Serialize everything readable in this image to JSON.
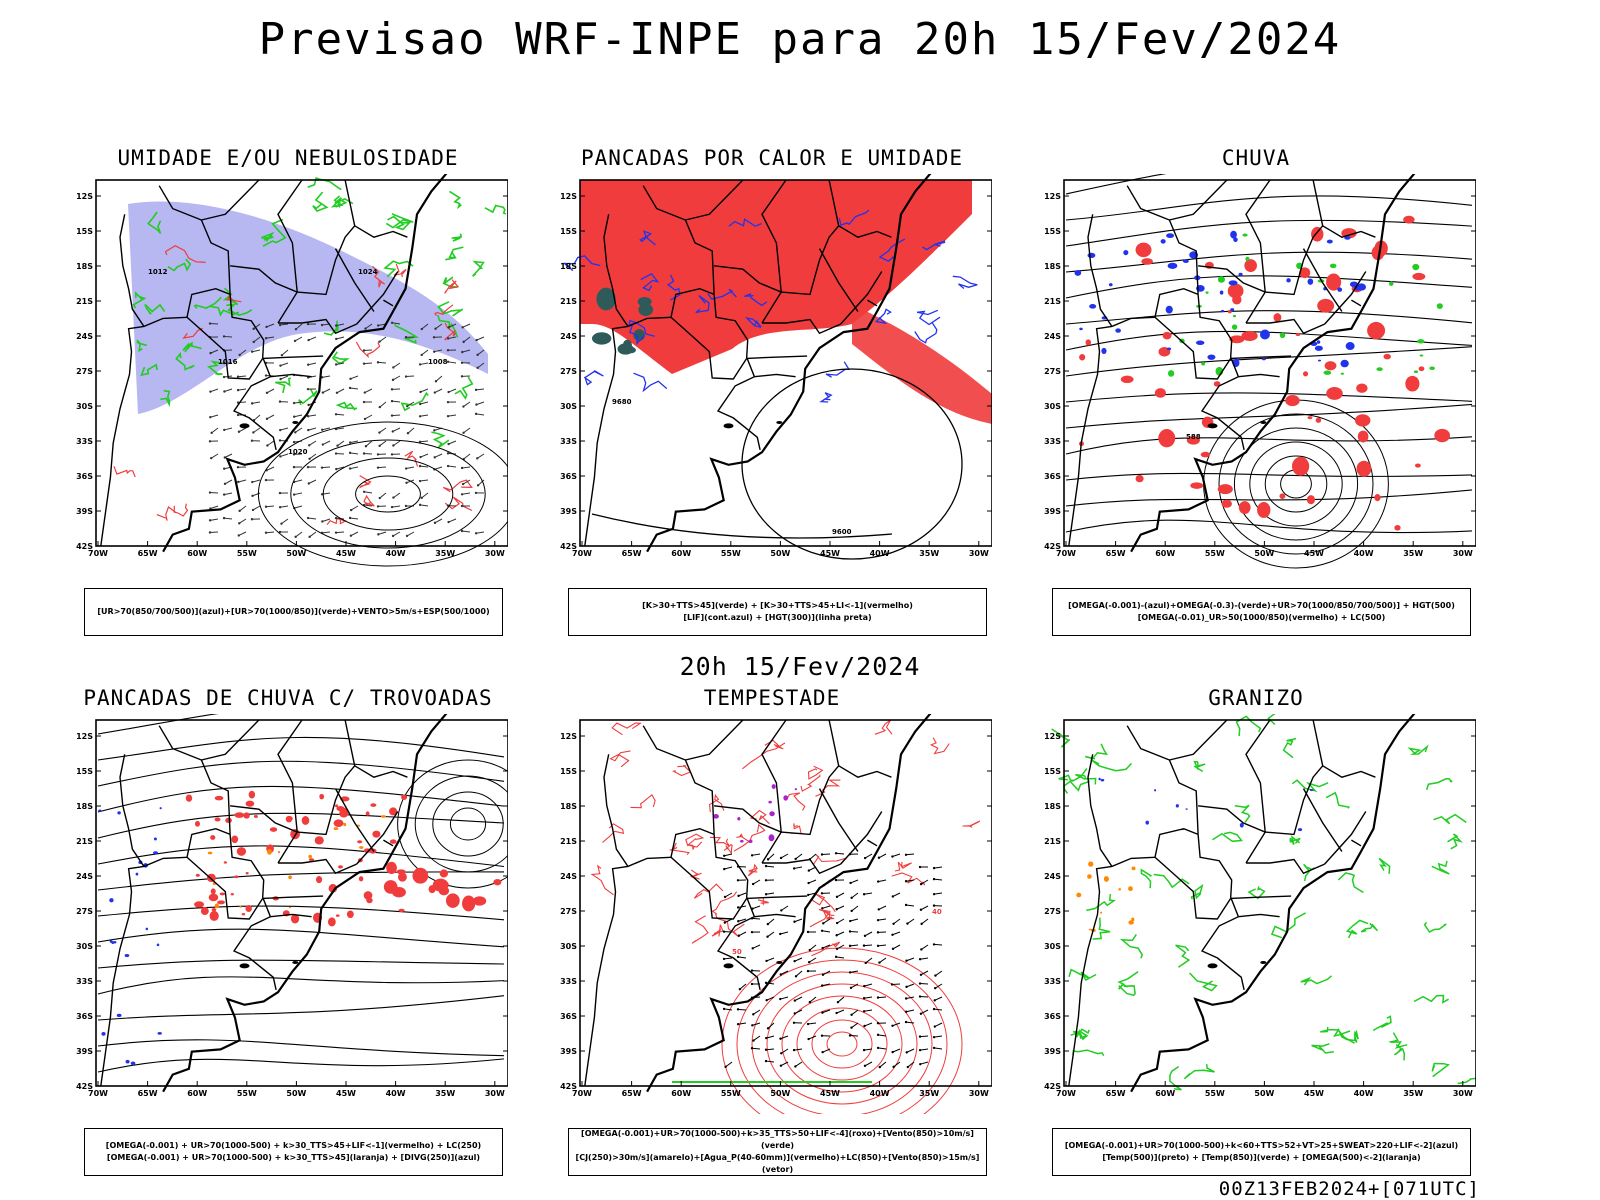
{
  "header": {
    "title": "Previsao WRF-INPE  para 20h 15/Fev/2024"
  },
  "middle": {
    "title": "20h 15/Fev/2024"
  },
  "footer": {
    "run": "00Z13FEB2024+[071UTC]"
  },
  "axes": {
    "lat_labels": [
      "12S",
      "15S",
      "18S",
      "21S",
      "24S",
      "27S",
      "30S",
      "33S",
      "36S",
      "39S",
      "42S"
    ],
    "lon_labels": [
      "70W",
      "65W",
      "60W",
      "55W",
      "50W",
      "45W",
      "40W",
      "35W",
      "30W"
    ]
  },
  "colors": {
    "red": "#f03c3c",
    "green": "#22cc22",
    "blue": "#2233ee",
    "lavender": "#aaaaee",
    "dark_teal": "#2f5a5a",
    "orange": "#ff8800",
    "purple": "#aa22cc",
    "black": "#000000"
  },
  "panels": [
    {
      "title": "UMIDADE E/OU NEBULOSIDADE",
      "legend": [
        "[UR>70(850/700/500)](azul)+[UR>70(1000/850)](verde)+VENTO>5m/s+ESP(500/1000)"
      ],
      "contour_labels": [
        "1012",
        "1016",
        "1020",
        "1024",
        "1008"
      ]
    },
    {
      "title": "PANCADAS POR CALOR E UMIDADE",
      "legend": [
        "[K>30+TTS>45](verde)  +  [K>30+TTS>45+LI<-1](vermelho)",
        "[LIF](cont.azul)  +  [HGT(300)](linha preta)"
      ],
      "contour_labels": [
        "9680",
        "9600"
      ]
    },
    {
      "title": "CHUVA",
      "legend": [
        "[OMEGA(-0.001)-(azul)+OMEGA(-0.3)-(verde)+UR>70(1000/850/700/500)]  +  HGT(500)",
        "[OMEGA(-0.01)_UR>50(1000/850)(vermelho)  +  LC(500)"
      ],
      "contour_labels": [
        "588"
      ]
    },
    {
      "title": "PANCADAS DE CHUVA C/ TROVOADAS",
      "legend": [
        "[OMEGA(-0.001)  +  UR>70(1000-500)  +  k>30_TTS>45+LIF<-1](vermelho)  +  LC(250)",
        "[OMEGA(-0.001)  +  UR>70(1000-500)  +  k>30_TTS>45](laranja)  +  [DIVG(250)](azul)"
      ],
      "contour_labels": []
    },
    {
      "title": "TEMPESTADE",
      "legend": [
        "[OMEGA(-0.001)+UR>70(1000-500)+k>35_TTS>50+LIF<-4](roxo)+[Vento(850)>10m/s](verde)",
        "[CJ(250)>30m/s](amarelo)+[Agua_P(40-60mm)](vermelho)+LC(850)+[Vento(850)>15m/s](vetor)"
      ],
      "contour_labels": [
        "40",
        "50"
      ]
    },
    {
      "title": "GRANIZO",
      "legend": [
        "[OMEGA(-0.001)+UR>70(1000-500)+k<60+TTS>52+VT>25+SWEAT>220+LIF<-2](azul)",
        "[Temp(500)](preto)  +  [Temp(850)](verde)  +  [OMEGA(500)<-2](laranja)"
      ],
      "contour_labels": []
    }
  ]
}
